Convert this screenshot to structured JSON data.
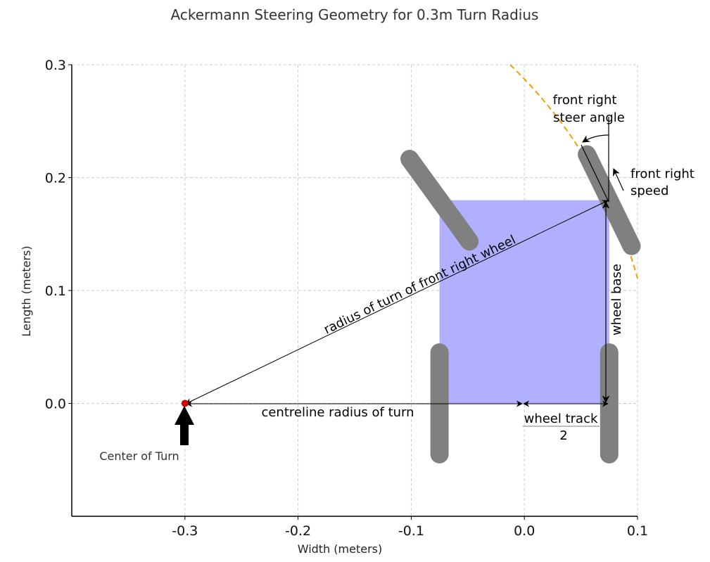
{
  "chart_data": {
    "type": "diagram",
    "title": "Ackermann Steering Geometry for 0.3m Turn Radius",
    "xlabel": "Width (meters)",
    "ylabel": "Length (meters)",
    "xlim": [
      -0.4,
      0.1
    ],
    "ylim": [
      -0.1,
      0.3
    ],
    "x_ticks": [
      "-0.3",
      "-0.2",
      "-0.1",
      "0.0",
      "0.1"
    ],
    "y_ticks": [
      "0.0",
      "0.1",
      "0.2",
      "0.3"
    ],
    "grid": true,
    "body": {
      "x": [
        -0.075,
        0.075
      ],
      "y": [
        0,
        0.18
      ],
      "color": "#b0b0ff"
    },
    "wheels": [
      {
        "name": "rear-left",
        "cx": -0.075,
        "cy": 0,
        "len": 0.09,
        "angle_deg": 0
      },
      {
        "name": "rear-right",
        "cx": 0.075,
        "cy": 0,
        "len": 0.09,
        "angle_deg": 0
      },
      {
        "name": "front-left",
        "cx": -0.075,
        "cy": 0.18,
        "len": 0.09,
        "angle_deg": -36
      },
      {
        "name": "front-right",
        "cx": 0.075,
        "cy": 0.18,
        "len": 0.09,
        "angle_deg": -26
      }
    ],
    "center_of_turn": {
      "x": -0.3,
      "y": 0
    },
    "front_right_pivot": {
      "x": 0.073,
      "y": 0.18
    },
    "turn_arc": {
      "cx": -0.3,
      "cy": 0,
      "r": 0.415,
      "color": "#f0a000"
    }
  },
  "annotations": {
    "radius_front_right": "radius of turn of front right wheel",
    "centreline_radius": "centreline radius of turn",
    "wheel_track": "wheel track",
    "wheel_track_divisor": "2",
    "wheel_base": "wheel base",
    "front_right_steer_line1": "front right",
    "front_right_steer_line2": "steer angle",
    "front_right_speed_line1": "front right",
    "front_right_speed_line2": "speed",
    "center_of_turn": "Center of Turn"
  },
  "colors": {
    "wheel": "#808080",
    "center_dot": "#cc0000",
    "grid": "#cccccc"
  }
}
